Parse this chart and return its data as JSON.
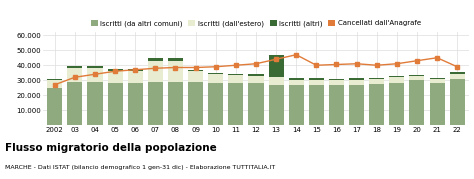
{
  "years": [
    "2002",
    "03",
    "04",
    "05",
    "06",
    "07",
    "08",
    "09",
    "10",
    "11",
    "12",
    "13",
    "14",
    "15",
    "16",
    "17",
    "18",
    "19",
    "20",
    "21",
    "22"
  ],
  "iscritti_altri_comuni": [
    25000,
    29000,
    29000,
    28000,
    28000,
    29000,
    29000,
    29000,
    28000,
    28000,
    28000,
    27000,
    27000,
    27000,
    27000,
    27000,
    27500,
    28000,
    30000,
    28000,
    31000
  ],
  "iscritti_estero": [
    5000,
    9500,
    9000,
    8500,
    8500,
    14000,
    14000,
    7000,
    6000,
    5500,
    5000,
    5000,
    3500,
    3500,
    3500,
    3500,
    3500,
    4000,
    3000,
    3000,
    3500
  ],
  "iscritti_altri": [
    800,
    800,
    1200,
    1200,
    1200,
    1800,
    2000,
    800,
    700,
    600,
    900,
    15000,
    700,
    700,
    600,
    700,
    700,
    700,
    700,
    700,
    700
  ],
  "cancellati_anagrafe": [
    27000,
    32000,
    34000,
    36000,
    37000,
    38000,
    38500,
    38500,
    39000,
    40000,
    41000,
    44000,
    47000,
    40000,
    40500,
    41000,
    40000,
    41000,
    43000,
    45000,
    39000
  ],
  "color_altri_comuni": "#8faa7f",
  "color_estero": "#e8ecd0",
  "color_altri": "#3a6b35",
  "color_cancellati": "#e07b39",
  "title": "Flusso migratorio della popolazione",
  "subtitle": "MARCHE - Dati ISTAT (bilancio demografico 1 gen-31 dic) - Elaborazione TUTTITALIA.IT",
  "legend_labels": [
    "Iscritti (da altri comuni)",
    "Iscritti (dall'estero)",
    "Iscritti (altri)",
    "Cancellati dall'Anagrafe"
  ],
  "ylim": [
    0,
    62000
  ],
  "yticks": [
    0,
    10000,
    20000,
    30000,
    40000,
    50000,
    60000
  ],
  "ytick_labels": [
    "",
    "10.000",
    "20.000",
    "30.000",
    "40.000",
    "50.000",
    "60.000"
  ],
  "bg_color": "#ffffff",
  "grid_color": "#dddddd"
}
